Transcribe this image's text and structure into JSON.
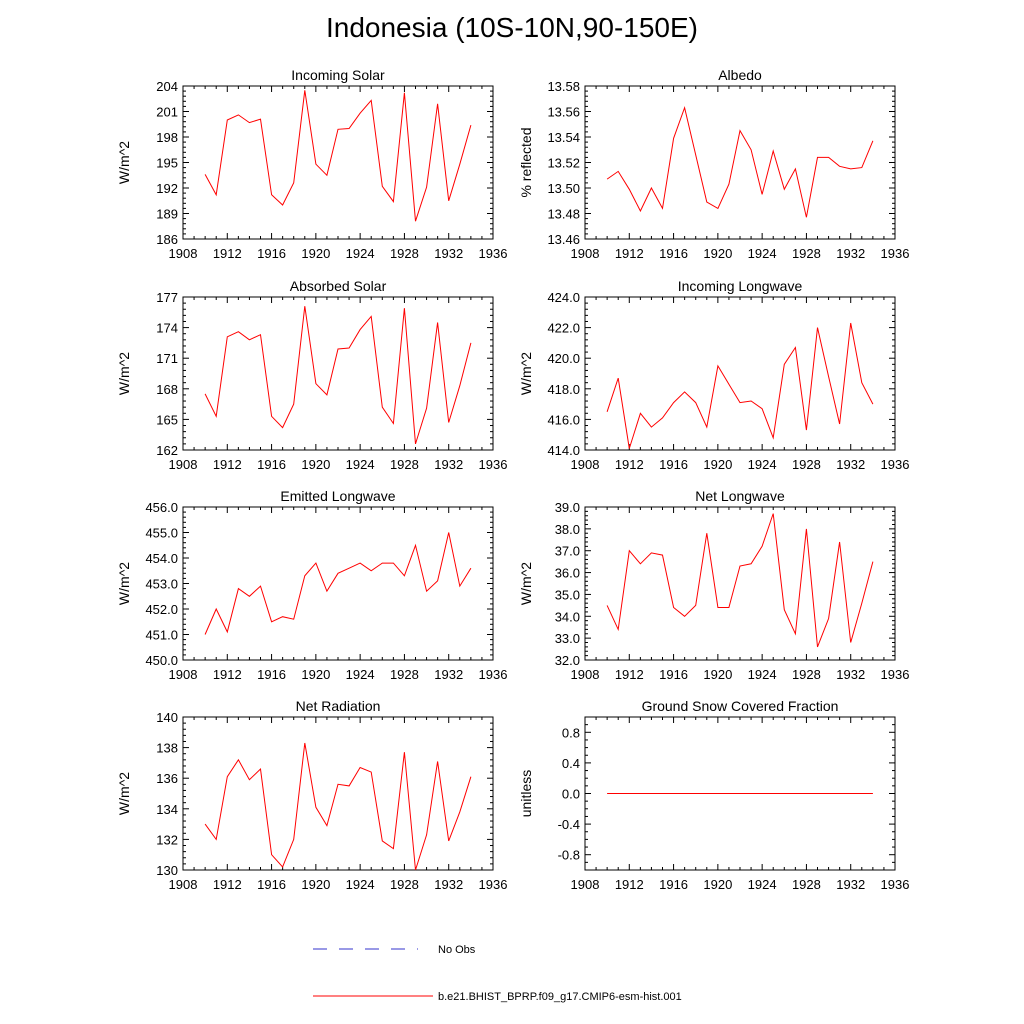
{
  "title": "Indonesia (10S-10N,90-150E)",
  "legend": {
    "obs_label": "No Obs",
    "model_label": "b.e21.BHIST_BPRP.f09_g17.CMIP6-esm-hist.001",
    "model_color": "#ff0000",
    "obs_color": "#3333cc"
  },
  "chart_data": [
    {
      "type": "line",
      "title": "Incoming Solar",
      "ylabel": "W/m^2",
      "xlim": [
        1908,
        1936
      ],
      "ylim": [
        186,
        204
      ],
      "xticks": [
        1908,
        1912,
        1916,
        1920,
        1924,
        1928,
        1932,
        1936
      ],
      "yticks": [
        "186",
        "189",
        "192",
        "195",
        "198",
        "201",
        "204"
      ],
      "x": [
        1910,
        1911,
        1912,
        1913,
        1914,
        1915,
        1916,
        1917,
        1918,
        1919,
        1920,
        1921,
        1922,
        1923,
        1924,
        1925,
        1926,
        1927,
        1928,
        1929,
        1930,
        1931,
        1932,
        1933,
        1934
      ],
      "series": [
        {
          "values": [
            193.6,
            191.2,
            200.0,
            200.6,
            199.7,
            200.1,
            191.2,
            190.0,
            192.6,
            203.5,
            194.8,
            193.5,
            198.9,
            199.0,
            200.8,
            202.3,
            192.2,
            190.4,
            203.2,
            188.1,
            192.1,
            201.9,
            190.5,
            194.8,
            199.4
          ]
        }
      ]
    },
    {
      "type": "line",
      "title": "Albedo",
      "ylabel": "% reflected",
      "xlim": [
        1908,
        1936
      ],
      "ylim": [
        13.46,
        13.58
      ],
      "xticks": [
        1908,
        1912,
        1916,
        1920,
        1924,
        1928,
        1932,
        1936
      ],
      "yticks": [
        "13.46",
        "13.48",
        "13.50",
        "13.52",
        "13.54",
        "13.56",
        "13.58"
      ],
      "x": [
        1910,
        1911,
        1912,
        1913,
        1914,
        1915,
        1916,
        1917,
        1918,
        1919,
        1920,
        1921,
        1922,
        1923,
        1924,
        1925,
        1926,
        1927,
        1928,
        1929,
        1930,
        1931,
        1932,
        1933,
        1934
      ],
      "series": [
        {
          "values": [
            13.507,
            13.513,
            13.499,
            13.482,
            13.5,
            13.484,
            13.539,
            13.563,
            13.526,
            13.489,
            13.484,
            13.503,
            13.545,
            13.53,
            13.495,
            13.529,
            13.499,
            13.515,
            13.477,
            13.524,
            13.524,
            13.517,
            13.515,
            13.516,
            13.537
          ]
        }
      ]
    },
    {
      "type": "line",
      "title": "Absorbed Solar",
      "ylabel": "W/m^2",
      "xlim": [
        1908,
        1936
      ],
      "ylim": [
        162,
        177
      ],
      "xticks": [
        1908,
        1912,
        1916,
        1920,
        1924,
        1928,
        1932,
        1936
      ],
      "yticks": [
        "162",
        "165",
        "168",
        "171",
        "174",
        "177"
      ],
      "x": [
        1910,
        1911,
        1912,
        1913,
        1914,
        1915,
        1916,
        1917,
        1918,
        1919,
        1920,
        1921,
        1922,
        1923,
        1924,
        1925,
        1926,
        1927,
        1928,
        1929,
        1930,
        1931,
        1932,
        1933,
        1934
      ],
      "series": [
        {
          "values": [
            167.5,
            165.3,
            173.1,
            173.6,
            172.8,
            173.3,
            165.3,
            164.2,
            166.5,
            176.1,
            168.5,
            167.4,
            171.9,
            172.0,
            173.8,
            175.1,
            166.2,
            164.6,
            175.9,
            162.6,
            166.1,
            174.5,
            164.7,
            168.3,
            172.5
          ]
        }
      ]
    },
    {
      "type": "line",
      "title": "Incoming Longwave",
      "ylabel": "W/m^2",
      "xlim": [
        1908,
        1936
      ],
      "ylim": [
        414.0,
        424.0
      ],
      "xticks": [
        1908,
        1912,
        1916,
        1920,
        1924,
        1928,
        1932,
        1936
      ],
      "yticks": [
        "414.0",
        "416.0",
        "418.0",
        "420.0",
        "422.0",
        "424.0"
      ],
      "x": [
        1910,
        1911,
        1912,
        1913,
        1914,
        1915,
        1916,
        1917,
        1918,
        1919,
        1920,
        1921,
        1922,
        1923,
        1924,
        1925,
        1926,
        1927,
        1928,
        1929,
        1930,
        1931,
        1932,
        1933,
        1934
      ],
      "series": [
        {
          "values": [
            416.5,
            418.7,
            414.1,
            416.4,
            415.5,
            416.1,
            417.1,
            417.8,
            417.1,
            415.5,
            419.5,
            418.3,
            417.1,
            417.2,
            416.7,
            414.8,
            419.6,
            420.7,
            415.3,
            422.0,
            418.8,
            415.7,
            422.3,
            418.4,
            417.0
          ]
        }
      ]
    },
    {
      "type": "line",
      "title": "Emitted Longwave",
      "ylabel": "W/m^2",
      "xlim": [
        1908,
        1936
      ],
      "ylim": [
        450.0,
        456.0
      ],
      "xticks": [
        1908,
        1912,
        1916,
        1920,
        1924,
        1928,
        1932,
        1936
      ],
      "yticks": [
        "450.0",
        "451.0",
        "452.0",
        "453.0",
        "454.0",
        "455.0",
        "456.0"
      ],
      "x": [
        1910,
        1911,
        1912,
        1913,
        1914,
        1915,
        1916,
        1917,
        1918,
        1919,
        1920,
        1921,
        1922,
        1923,
        1924,
        1925,
        1926,
        1927,
        1928,
        1929,
        1930,
        1931,
        1932,
        1933,
        1934
      ],
      "series": [
        {
          "values": [
            451.0,
            452.0,
            451.1,
            452.8,
            452.5,
            452.9,
            451.5,
            451.7,
            451.6,
            453.3,
            453.8,
            452.7,
            453.4,
            453.6,
            453.8,
            453.5,
            453.8,
            453.8,
            453.3,
            454.5,
            452.7,
            453.1,
            455.0,
            452.9,
            453.6
          ]
        }
      ]
    },
    {
      "type": "line",
      "title": "Net Longwave",
      "ylabel": "W/m^2",
      "xlim": [
        1908,
        1936
      ],
      "ylim": [
        32.0,
        39.0
      ],
      "xticks": [
        1908,
        1912,
        1916,
        1920,
        1924,
        1928,
        1932,
        1936
      ],
      "yticks": [
        "32.0",
        "33.0",
        "34.0",
        "35.0",
        "36.0",
        "37.0",
        "38.0",
        "39.0"
      ],
      "x": [
        1910,
        1911,
        1912,
        1913,
        1914,
        1915,
        1916,
        1917,
        1918,
        1919,
        1920,
        1921,
        1922,
        1923,
        1924,
        1925,
        1926,
        1927,
        1928,
        1929,
        1930,
        1931,
        1932,
        1933,
        1934
      ],
      "series": [
        {
          "values": [
            34.5,
            33.4,
            37.0,
            36.4,
            36.9,
            36.8,
            34.4,
            34.0,
            34.5,
            37.8,
            34.4,
            34.4,
            36.3,
            36.4,
            37.2,
            38.7,
            34.3,
            33.2,
            38.0,
            32.6,
            33.9,
            37.4,
            32.8,
            34.6,
            36.5
          ]
        }
      ]
    },
    {
      "type": "line",
      "title": "Net Radiation",
      "ylabel": "W/m^2",
      "xlim": [
        1908,
        1936
      ],
      "ylim": [
        130,
        140
      ],
      "xticks": [
        1908,
        1912,
        1916,
        1920,
        1924,
        1928,
        1932,
        1936
      ],
      "yticks": [
        "130",
        "132",
        "134",
        "136",
        "138",
        "140"
      ],
      "x": [
        1910,
        1911,
        1912,
        1913,
        1914,
        1915,
        1916,
        1917,
        1918,
        1919,
        1920,
        1921,
        1922,
        1923,
        1924,
        1925,
        1926,
        1927,
        1928,
        1929,
        1930,
        1931,
        1932,
        1933,
        1934
      ],
      "series": [
        {
          "values": [
            133.0,
            132.0,
            136.1,
            137.2,
            135.9,
            136.6,
            131.0,
            130.2,
            132.0,
            138.3,
            134.1,
            132.9,
            135.6,
            135.5,
            136.7,
            136.4,
            131.9,
            131.4,
            137.7,
            130.0,
            132.3,
            137.1,
            131.9,
            133.8,
            136.1
          ]
        }
      ]
    },
    {
      "type": "line",
      "title": "Ground Snow Covered Fraction",
      "ylabel": "unitless",
      "xlim": [
        1908,
        1936
      ],
      "ylim": [
        -1.0,
        1.0
      ],
      "xticks": [
        1908,
        1912,
        1916,
        1920,
        1924,
        1928,
        1932,
        1936
      ],
      "yticks": [
        "-0.8",
        "-0.4",
        "0.0",
        "0.4",
        "0.8"
      ],
      "x": [
        1910,
        1911,
        1912,
        1913,
        1914,
        1915,
        1916,
        1917,
        1918,
        1919,
        1920,
        1921,
        1922,
        1923,
        1924,
        1925,
        1926,
        1927,
        1928,
        1929,
        1930,
        1931,
        1932,
        1933,
        1934
      ],
      "series": [
        {
          "values": [
            0,
            0,
            0,
            0,
            0,
            0,
            0,
            0,
            0,
            0,
            0,
            0,
            0,
            0,
            0,
            0,
            0,
            0,
            0,
            0,
            0,
            0,
            0,
            0,
            0
          ]
        }
      ]
    }
  ]
}
